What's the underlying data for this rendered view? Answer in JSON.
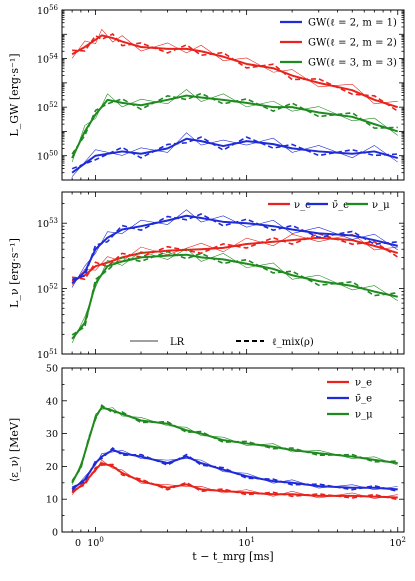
{
  "chart_data": [
    {
      "type": "line",
      "panel": "top",
      "ylabel": "L_GW [erg·s⁻¹]",
      "yscale": "log",
      "ylim": [
        1e+49,
        1e+56
      ],
      "ytick_labels": [
        "10^50",
        "10^52",
        "10^54",
        "10^56"
      ],
      "series": [
        {
          "name": "GW(ℓ = 2, m = 1)",
          "color": "#1f2bd6",
          "x": [
            0.7,
            1.0,
            1.5,
            2.0,
            3.0,
            4.0,
            5.0,
            7.0,
            10.0,
            15.0,
            20.0,
            30.0,
            50.0,
            70.0,
            100.0
          ],
          "y": [
            2e+49,
            1e+50,
            1.5e+50,
            1.2e+50,
            2e+50,
            5e+50,
            4e+50,
            2.5e+50,
            4e+50,
            3e+50,
            2e+50,
            1.5e+50,
            1.2e+50,
            1.5e+50,
            8e+49
          ]
        },
        {
          "name": "GW(ℓ = 2, m = 2)",
          "color": "#e8231c",
          "x": [
            0.7,
            0.85,
            1.0,
            1.1,
            1.3,
            1.5,
            2.0,
            3.0,
            4.0,
            5.0,
            7.0,
            10.0,
            15.0,
            20.0,
            30.0,
            50.0,
            70.0,
            100.0
          ],
          "y": [
            1.5e+54,
            3e+54,
            6e+54,
            9e+54,
            7e+54,
            5e+54,
            3e+54,
            2.5e+54,
            2.5e+54,
            2e+54,
            1.2e+54,
            6e+53,
            4e+53,
            2e+53,
            1e+53,
            5e+52,
            2e+52,
            1e+52
          ]
        },
        {
          "name": "GW(ℓ = 3, m = 3)",
          "color": "#1f8a1f",
          "x": [
            0.7,
            0.85,
            1.0,
            1.2,
            1.5,
            2.0,
            3.0,
            4.0,
            5.0,
            7.0,
            10.0,
            15.0,
            20.0,
            30.0,
            50.0,
            70.0,
            100.0
          ],
          "y": [
            8e+49,
            1e+51,
            5e+51,
            2e+52,
            1.5e+52,
            1.2e+52,
            2e+52,
            3e+52,
            2.5e+52,
            2e+52,
            1.5e+52,
            1e+52,
            1e+52,
            6e+51,
            4e+51,
            2e+51,
            1e+51
          ]
        }
      ]
    },
    {
      "type": "line",
      "panel": "middle",
      "ylabel": "L_ν [erg·s⁻¹]",
      "yscale": "log",
      "ylim": [
        1e+51,
        3e+53
      ],
      "ytick_labels": [
        "10^51",
        "10^52",
        "10^53"
      ],
      "series": [
        {
          "name": "ν_e",
          "color": "#e8231c",
          "x": [
            0.7,
            0.85,
            1.0,
            1.2,
            1.5,
            2.0,
            3.0,
            5.0,
            7.0,
            10.0,
            15.0,
            20.0,
            30.0,
            50.0,
            70.0,
            100.0
          ],
          "y": [
            1.3e+52,
            1.6e+52,
            2.2e+52,
            2.5e+52,
            3e+52,
            3.5e+52,
            3.8e+52,
            4e+52,
            4.2e+52,
            4.8e+52,
            5.2e+52,
            5.5e+52,
            6e+52,
            5.5e+52,
            4.5e+52,
            3.5e+52
          ]
        },
        {
          "name": "ν̄_e",
          "color": "#1f2bd6",
          "x": [
            0.7,
            0.85,
            1.0,
            1.2,
            1.5,
            2.0,
            3.0,
            4.0,
            5.0,
            7.0,
            10.0,
            15.0,
            20.0,
            30.0,
            50.0,
            70.0,
            100.0
          ],
          "y": [
            1.2e+52,
            1.8e+52,
            4e+52,
            6e+52,
            8e+52,
            9e+52,
            1.1e+53,
            1.3e+53,
            1.2e+53,
            1.05e+53,
            1e+53,
            9e+52,
            8e+52,
            7e+52,
            6.5e+52,
            5.5e+52,
            4.5e+52
          ]
        },
        {
          "name": "ν_μ",
          "color": "#1f8a1f",
          "x": [
            0.7,
            0.85,
            1.0,
            1.2,
            1.5,
            2.0,
            3.0,
            4.0,
            5.0,
            7.0,
            10.0,
            15.0,
            20.0,
            30.0,
            50.0,
            70.0,
            100.0
          ],
          "y": [
            1.7e+51,
            3e+51,
            1.2e+52,
            2.2e+52,
            2.6e+52,
            3e+52,
            3.2e+52,
            3.3e+52,
            3e+52,
            2.8e+52,
            2.4e+52,
            2e+52,
            1.6e+52,
            1.3e+52,
            1.1e+52,
            9e+51,
            7.5e+51
          ]
        }
      ],
      "style_legend": [
        "LR",
        "ℓ_mix(ρ)"
      ]
    },
    {
      "type": "line",
      "panel": "bottom",
      "xlabel": "t − t_mrg [ms]",
      "ylabel": "⟨ε_ν⟩ [MeV]",
      "xscale": "log",
      "xlim": [
        0.6,
        110
      ],
      "xtick_labels": [
        "0",
        "10^0",
        "10^1",
        "10^2"
      ],
      "ylim": [
        0,
        50
      ],
      "ytick_labels": [
        "0",
        "10",
        "20",
        "30",
        "40",
        "50"
      ],
      "series": [
        {
          "name": "ν_e",
          "color": "#e8231c",
          "x": [
            0.7,
            0.85,
            1.0,
            1.1,
            1.3,
            1.5,
            2.0,
            3.0,
            4.0,
            5.0,
            7.0,
            10.0,
            15.0,
            20.0,
            30.0,
            50.0,
            70.0,
            100.0
          ],
          "y": [
            12,
            15,
            19,
            21,
            20,
            18,
            15.5,
            13.5,
            14.5,
            13,
            12.5,
            12,
            11.5,
            11.5,
            11,
            11,
            10.8,
            10.5
          ]
        },
        {
          "name": "ν̄_e",
          "color": "#1f2bd6",
          "x": [
            0.7,
            0.85,
            1.0,
            1.1,
            1.3,
            1.5,
            2.0,
            3.0,
            4.0,
            5.0,
            7.0,
            10.0,
            15.0,
            20.0,
            30.0,
            50.0,
            70.0,
            100.0
          ],
          "y": [
            13,
            16,
            21,
            23,
            25,
            24,
            23,
            21,
            23,
            21,
            19,
            17,
            15.5,
            15,
            14,
            13.5,
            13.5,
            13
          ]
        },
        {
          "name": "ν_μ",
          "color": "#1f8a1f",
          "x": [
            0.7,
            0.8,
            0.9,
            1.0,
            1.1,
            1.3,
            1.5,
            2.0,
            3.0,
            4.0,
            5.0,
            7.0,
            10.0,
            15.0,
            20.0,
            30.0,
            50.0,
            70.0,
            100.0
          ],
          "y": [
            15,
            20,
            28,
            35,
            38,
            37,
            36,
            34,
            33,
            31,
            30,
            28,
            27,
            26,
            25,
            24,
            23,
            22,
            21
          ]
        }
      ]
    }
  ]
}
